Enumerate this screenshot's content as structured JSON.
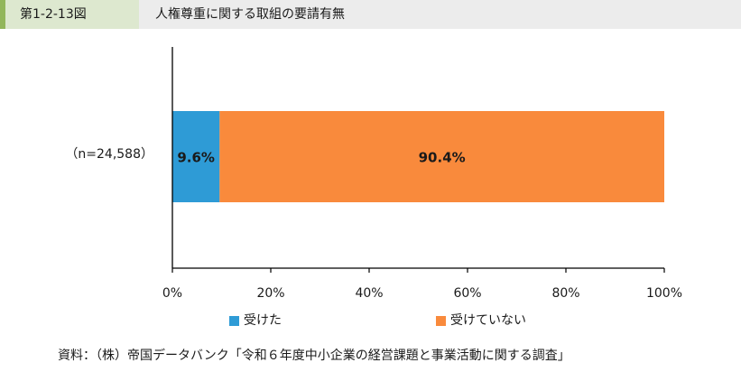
{
  "header": {
    "figure_number": "第1-2-13図",
    "title": "人権尊重に関する取組の要請有無"
  },
  "chart_data": {
    "type": "bar",
    "orientation": "horizontal",
    "stacked": true,
    "categories": [
      "（n=24,588）"
    ],
    "series": [
      {
        "name": "受けた",
        "values": [
          9.6
        ],
        "label": "9.6%",
        "color": "#2e9bd6"
      },
      {
        "name": "受けていない",
        "values": [
          90.4
        ],
        "label": "90.4%",
        "color": "#f98a3c"
      }
    ],
    "xlim": [
      0,
      100
    ],
    "x_ticks": [
      {
        "value": 0,
        "label": "0%"
      },
      {
        "value": 20,
        "label": "20%"
      },
      {
        "value": 40,
        "label": "40%"
      },
      {
        "value": 60,
        "label": "60%"
      },
      {
        "value": 80,
        "label": "80%"
      },
      {
        "value": 100,
        "label": "100%"
      }
    ],
    "grid": false,
    "legend_position": "bottom"
  },
  "source": "資料：（株）帝国データバンク「令和６年度中小企業の経営課題と事業活動に関する調査」"
}
